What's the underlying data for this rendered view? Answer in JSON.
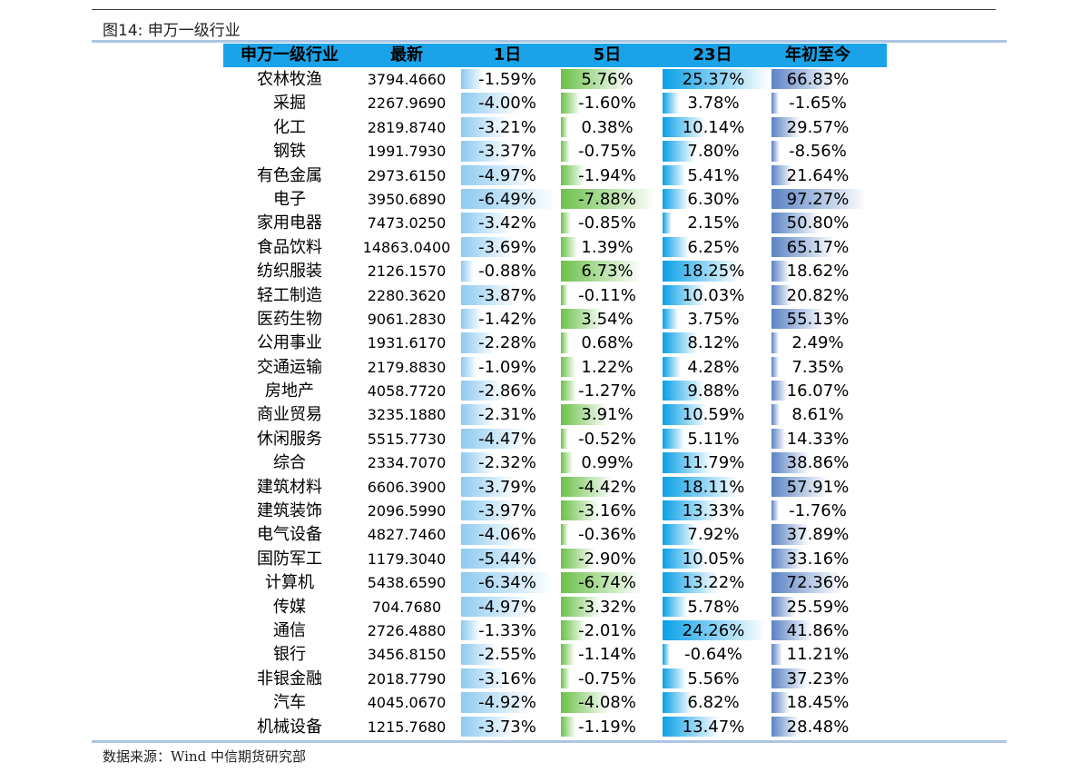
{
  "caption": "图14: 申万一级行业",
  "source": "数据来源：Wind    中信期货研究部",
  "headers": [
    "申万一级行业",
    "最新",
    "1日",
    "5日",
    "23日",
    "年初至今"
  ],
  "colors": {
    "header": "#1aa3e8",
    "col_1d": "#8ecaf0",
    "col_5d": "#6cc04a",
    "col_23d": "#0aa0e6",
    "col_ytd": "#5b83c4"
  },
  "rows": [
    {
      "name": "农林牧渔",
      "latest": "3794.4660",
      "d1": "-1.59%",
      "d5": "5.76%",
      "d23": "25.37%",
      "ytd": "66.83%"
    },
    {
      "name": "采掘",
      "latest": "2267.9690",
      "d1": "-4.00%",
      "d5": "-1.60%",
      "d23": "3.78%",
      "ytd": "-1.65%"
    },
    {
      "name": "化工",
      "latest": "2819.8740",
      "d1": "-3.21%",
      "d5": "0.38%",
      "d23": "10.14%",
      "ytd": "29.57%"
    },
    {
      "name": "钢铁",
      "latest": "1991.7930",
      "d1": "-3.37%",
      "d5": "-0.75%",
      "d23": "7.80%",
      "ytd": "-8.56%"
    },
    {
      "name": "有色金属",
      "latest": "2973.6150",
      "d1": "-4.97%",
      "d5": "-1.94%",
      "d23": "5.41%",
      "ytd": "21.64%"
    },
    {
      "name": "电子",
      "latest": "3950.6890",
      "d1": "-6.49%",
      "d5": "-7.88%",
      "d23": "6.30%",
      "ytd": "97.27%"
    },
    {
      "name": "家用电器",
      "latest": "7473.0250",
      "d1": "-3.42%",
      "d5": "-0.85%",
      "d23": "2.15%",
      "ytd": "50.80%"
    },
    {
      "name": "食品饮料",
      "latest": "14863.0400",
      "d1": "-3.69%",
      "d5": "1.39%",
      "d23": "6.25%",
      "ytd": "65.17%"
    },
    {
      "name": "纺织服装",
      "latest": "2126.1570",
      "d1": "-0.88%",
      "d5": "6.73%",
      "d23": "18.25%",
      "ytd": "18.62%"
    },
    {
      "name": "轻工制造",
      "latest": "2280.3620",
      "d1": "-3.87%",
      "d5": "-0.11%",
      "d23": "10.03%",
      "ytd": "20.82%"
    },
    {
      "name": "医药生物",
      "latest": "9061.2830",
      "d1": "-1.42%",
      "d5": "3.54%",
      "d23": "3.75%",
      "ytd": "55.13%"
    },
    {
      "name": "公用事业",
      "latest": "1931.6170",
      "d1": "-2.28%",
      "d5": "0.68%",
      "d23": "8.12%",
      "ytd": "2.49%"
    },
    {
      "name": "交通运输",
      "latest": "2179.8830",
      "d1": "-1.09%",
      "d5": "1.22%",
      "d23": "4.28%",
      "ytd": "7.35%"
    },
    {
      "name": "房地产",
      "latest": "4058.7720",
      "d1": "-2.86%",
      "d5": "-1.27%",
      "d23": "9.88%",
      "ytd": "16.07%"
    },
    {
      "name": "商业贸易",
      "latest": "3235.1880",
      "d1": "-2.31%",
      "d5": "3.91%",
      "d23": "10.59%",
      "ytd": "8.61%"
    },
    {
      "name": "休闲服务",
      "latest": "5515.7730",
      "d1": "-4.47%",
      "d5": "-0.52%",
      "d23": "5.11%",
      "ytd": "14.33%"
    },
    {
      "name": "综合",
      "latest": "2334.7070",
      "d1": "-2.32%",
      "d5": "0.99%",
      "d23": "11.79%",
      "ytd": "38.86%"
    },
    {
      "name": "建筑材料",
      "latest": "6606.3900",
      "d1": "-3.79%",
      "d5": "-4.42%",
      "d23": "18.11%",
      "ytd": "57.91%"
    },
    {
      "name": "建筑装饰",
      "latest": "2096.5990",
      "d1": "-3.97%",
      "d5": "-3.16%",
      "d23": "13.33%",
      "ytd": "-1.76%"
    },
    {
      "name": "电气设备",
      "latest": "4827.7460",
      "d1": "-4.06%",
      "d5": "-0.36%",
      "d23": "7.92%",
      "ytd": "37.89%"
    },
    {
      "name": "国防军工",
      "latest": "1179.3040",
      "d1": "-5.44%",
      "d5": "-2.90%",
      "d23": "10.05%",
      "ytd": "33.16%"
    },
    {
      "name": "计算机",
      "latest": "5438.6590",
      "d1": "-6.34%",
      "d5": "-6.74%",
      "d23": "13.22%",
      "ytd": "72.36%"
    },
    {
      "name": "传媒",
      "latest": "704.7680",
      "d1": "-4.97%",
      "d5": "-3.32%",
      "d23": "5.78%",
      "ytd": "25.59%"
    },
    {
      "name": "通信",
      "latest": "2726.4880",
      "d1": "-1.33%",
      "d5": "-2.01%",
      "d23": "24.26%",
      "ytd": "41.86%"
    },
    {
      "name": "银行",
      "latest": "3456.8150",
      "d1": "-2.55%",
      "d5": "-1.14%",
      "d23": "-0.64%",
      "ytd": "11.21%"
    },
    {
      "name": "非银金融",
      "latest": "2018.7790",
      "d1": "-3.16%",
      "d5": "-0.75%",
      "d23": "5.56%",
      "ytd": "37.23%"
    },
    {
      "name": "汽车",
      "latest": "4045.0670",
      "d1": "-4.92%",
      "d5": "-4.08%",
      "d23": "6.82%",
      "ytd": "18.45%"
    },
    {
      "name": "机械设备",
      "latest": "1215.7680",
      "d1": "-3.73%",
      "d5": "-1.19%",
      "d23": "13.47%",
      "ytd": "28.48%"
    }
  ]
}
